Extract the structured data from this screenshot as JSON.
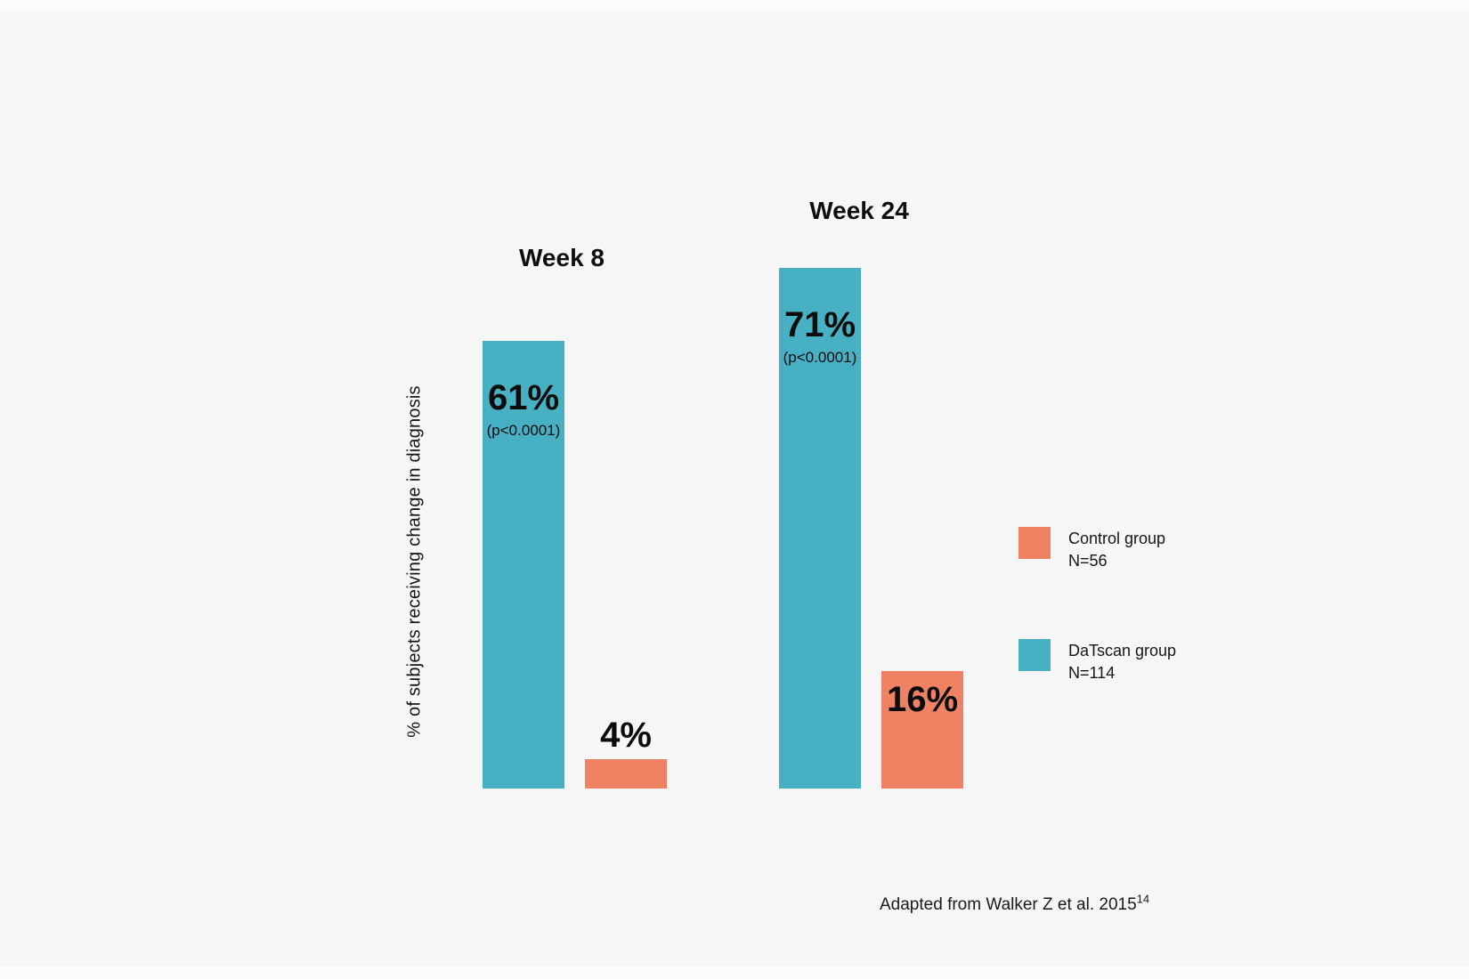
{
  "chart_data": {
    "type": "bar",
    "title": "",
    "categories": [
      "Week 8",
      "Week 24"
    ],
    "series": [
      {
        "name": "DaTscan group",
        "n_label": "N=114",
        "values": [
          61,
          71
        ],
        "color": "#47b0c2"
      },
      {
        "name": "Control group",
        "n_label": "N=56",
        "values": [
          4,
          16
        ],
        "color": "#ef8262"
      }
    ],
    "bars": [
      {
        "category": "Week 8",
        "series": "DaTscan group",
        "value": 61,
        "label": "61%",
        "p_value": "(p<0.0001)",
        "color": "#47b0c2",
        "label_position": "inside"
      },
      {
        "category": "Week 8",
        "series": "Control group",
        "value": 4,
        "label": "4%",
        "p_value": "",
        "color": "#ef8262",
        "label_position": "above"
      },
      {
        "category": "Week 24",
        "series": "DaTscan group",
        "value": 71,
        "label": "71%",
        "p_value": "(p<0.0001)",
        "color": "#47b0c2",
        "label_position": "inside"
      },
      {
        "category": "Week 24",
        "series": "Control group",
        "value": 16,
        "label": "16%",
        "p_value": "",
        "color": "#ef8262",
        "label_position": "inside"
      }
    ],
    "ylabel": "% of subjects receiving change in diagnosis",
    "xlabel": "",
    "ylim": [
      0,
      100
    ],
    "grid": false,
    "axes_drawn": false,
    "legend_position": "right"
  },
  "legend": {
    "items": [
      {
        "label": "Control group",
        "n": "N=56",
        "color": "#ef8262"
      },
      {
        "label": "DaTscan group",
        "n": "N=114",
        "color": "#47b0c2"
      }
    ]
  },
  "citation": {
    "text": "Adapted from Walker Z et al. 2015",
    "superscript": "14"
  },
  "colors": {
    "teal": "#47b0c2",
    "orange": "#ef8262",
    "background": "#f5f6f5",
    "text": "#111111"
  }
}
